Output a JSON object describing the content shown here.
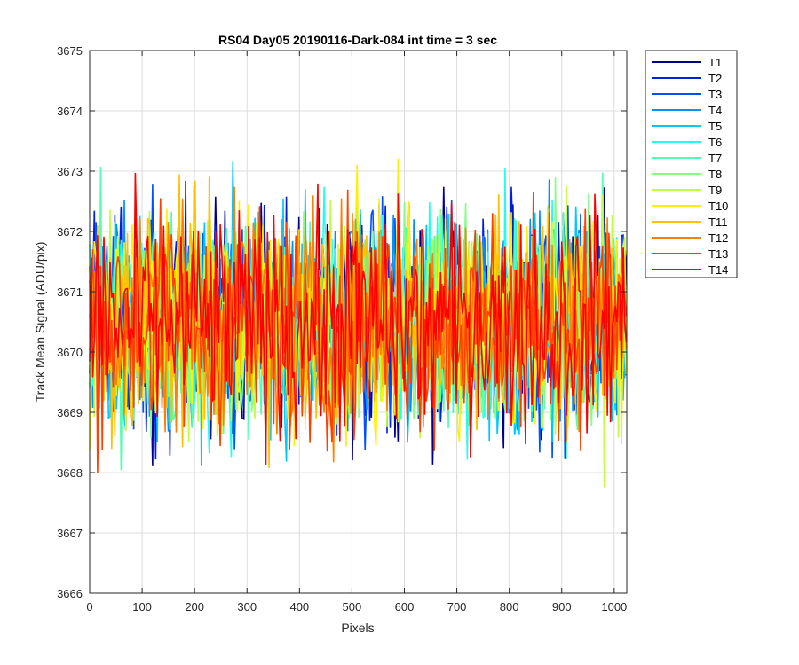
{
  "chart_data": {
    "type": "line",
    "title": "RS04 Day05 20190116-Dark-084 int time = 3 sec",
    "xlabel": "Pixels",
    "ylabel": "Track Mean Signal (ADU/pix)",
    "xlim": [
      0,
      1024
    ],
    "ylim": [
      3666,
      3675
    ],
    "xticks": [
      0,
      100,
      200,
      300,
      400,
      500,
      600,
      700,
      800,
      900,
      1000
    ],
    "yticks": [
      3666,
      3667,
      3668,
      3669,
      3670,
      3671,
      3672,
      3673,
      3674,
      3675
    ],
    "grid": true,
    "legend_position": "outside-top-right",
    "series_mean": 3670.5,
    "series_noise_half_range": 1.9,
    "series": [
      {
        "name": "T1",
        "color": "#00008F"
      },
      {
        "name": "T2",
        "color": "#0020DF"
      },
      {
        "name": "T3",
        "color": "#0050FF"
      },
      {
        "name": "T4",
        "color": "#0090FF"
      },
      {
        "name": "T5",
        "color": "#00C8FF"
      },
      {
        "name": "T6",
        "color": "#20FFEF"
      },
      {
        "name": "T7",
        "color": "#50FFAF"
      },
      {
        "name": "T8",
        "color": "#80FF80"
      },
      {
        "name": "T9",
        "color": "#C0FF40"
      },
      {
        "name": "T10",
        "color": "#FFEF00"
      },
      {
        "name": "T11",
        "color": "#FFC000"
      },
      {
        "name": "T12",
        "color": "#FF8000"
      },
      {
        "name": "T13",
        "color": "#FF4000"
      },
      {
        "name": "T14",
        "color": "#FF0000"
      }
    ]
  }
}
